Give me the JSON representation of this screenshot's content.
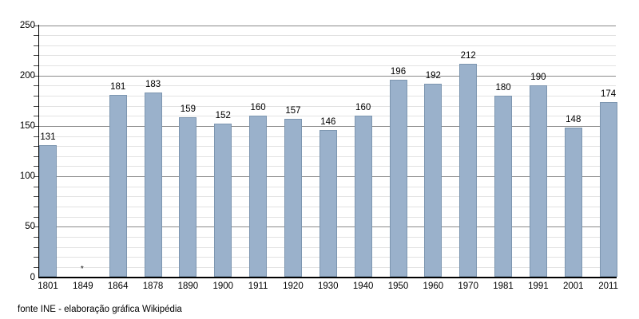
{
  "chart_data": {
    "type": "bar",
    "title": "",
    "xlabel": "",
    "ylabel": "",
    "categories": [
      "1801",
      "1849",
      "1864",
      "1878",
      "1890",
      "1900",
      "1911",
      "1920",
      "1930",
      "1940",
      "1950",
      "1960",
      "1970",
      "1981",
      "1991",
      "2001",
      "2011"
    ],
    "values": [
      131,
      null,
      181,
      183,
      159,
      152,
      160,
      157,
      146,
      160,
      196,
      192,
      212,
      180,
      190,
      148,
      174
    ],
    "missing_marker": {
      "category": "1849",
      "symbol": "*"
    },
    "ylim": [
      0,
      250
    ],
    "yticks": [
      0,
      50,
      100,
      150,
      200,
      250
    ],
    "minor_grid_step": 10,
    "major_grid_step": 50,
    "grid": true,
    "legend_position": "none",
    "bar_color": "#9ab1cb",
    "bar_border_color": "#7d96b0",
    "major_grid_color": "#8a8a8a",
    "minor_grid_color": "#e2e2e2",
    "footer": "fonte INE - elaboração gráfica Wikipédia"
  }
}
